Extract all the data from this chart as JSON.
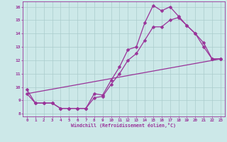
{
  "xlabel": "Windchill (Refroidissement éolien,°C)",
  "background_color": "#cce8e8",
  "grid_color": "#aacccc",
  "line_color": "#993399",
  "xlim": [
    -0.5,
    23.5
  ],
  "ylim": [
    7.8,
    16.4
  ],
  "xticks": [
    0,
    1,
    2,
    3,
    4,
    5,
    6,
    7,
    8,
    9,
    10,
    11,
    12,
    13,
    14,
    15,
    16,
    17,
    18,
    19,
    20,
    21,
    22,
    23
  ],
  "yticks": [
    8,
    9,
    10,
    11,
    12,
    13,
    14,
    15,
    16
  ],
  "line1_x": [
    0,
    1,
    2,
    3,
    4,
    5,
    6,
    7,
    8,
    9,
    10,
    11,
    12,
    13,
    14,
    15,
    16,
    17,
    18,
    19,
    20,
    21,
    22,
    23
  ],
  "line1_y": [
    9.8,
    8.8,
    8.8,
    8.8,
    8.4,
    8.4,
    8.4,
    8.4,
    9.5,
    9.4,
    10.5,
    11.5,
    12.8,
    13.0,
    14.8,
    16.1,
    15.7,
    16.0,
    15.3,
    14.6,
    14.0,
    13.3,
    12.1,
    12.1
  ],
  "line2_x": [
    0,
    1,
    2,
    3,
    4,
    5,
    6,
    7,
    8,
    9,
    10,
    11,
    12,
    13,
    14,
    15,
    16,
    17,
    18,
    19,
    20,
    21,
    22,
    23
  ],
  "line2_y": [
    9.5,
    8.8,
    8.8,
    8.8,
    8.4,
    8.4,
    8.4,
    8.4,
    9.2,
    9.3,
    10.2,
    11.0,
    12.0,
    12.5,
    13.5,
    14.5,
    14.5,
    15.0,
    15.2,
    14.6,
    14.0,
    13.0,
    12.1,
    12.1
  ],
  "line3_x": [
    0,
    23
  ],
  "line3_y": [
    9.5,
    12.1
  ],
  "markersize": 2.5,
  "linewidth": 0.9
}
